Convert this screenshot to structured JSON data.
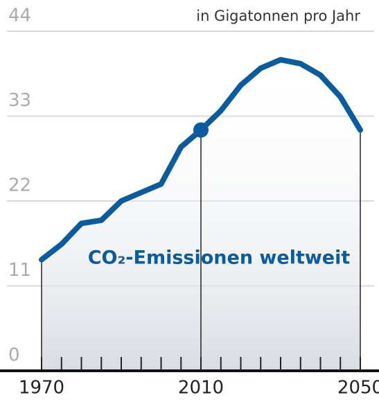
{
  "chart_data": {
    "type": "line",
    "subtitle": "in Gigatonnen pro Jahr",
    "annotation": "CO₂-Emissionen weltweit",
    "x": [
      1970,
      1975,
      1980,
      1985,
      1990,
      1995,
      2000,
      2005,
      2010,
      2015,
      2020,
      2025,
      2030,
      2035,
      2040,
      2045,
      2050
    ],
    "series": [
      {
        "name": "CO₂-Emissionen weltweit",
        "color": "#0b5c9e",
        "values": [
          14.4,
          16.4,
          19.1,
          19.5,
          22.0,
          23.1,
          24.2,
          29.0,
          31.2,
          33.7,
          37.0,
          39.2,
          40.3,
          39.8,
          38.3,
          35.5,
          31.2
        ]
      }
    ],
    "highlight_index": 8,
    "xlim": [
      1970,
      2050
    ],
    "xticks": [
      1970,
      2010,
      2050
    ],
    "xminor_ticks": [
      1970,
      1975,
      1980,
      1985,
      1990,
      1995,
      2000,
      2005,
      2010,
      2015,
      2020,
      2025,
      2030,
      2035,
      2040,
      2045,
      2050
    ],
    "ylim": [
      0,
      44
    ],
    "yticks": [
      0,
      11,
      22,
      33,
      44
    ],
    "grid": true
  }
}
